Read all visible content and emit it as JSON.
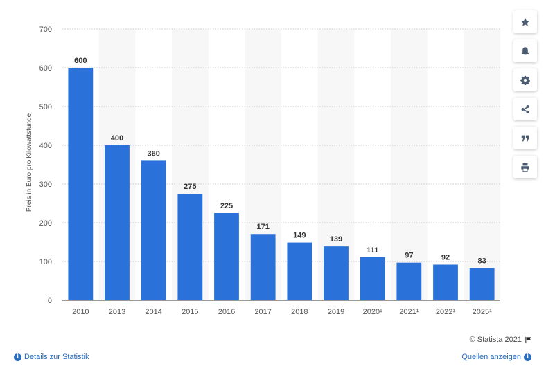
{
  "chart_data": {
    "type": "bar",
    "categories": [
      "2010",
      "2013",
      "2014",
      "2015",
      "2016",
      "2017",
      "2018",
      "2019",
      "2020¹",
      "2021¹",
      "2022¹",
      "2025¹"
    ],
    "values": [
      600,
      400,
      360,
      275,
      225,
      171,
      149,
      139,
      111,
      97,
      92,
      83
    ],
    "ylabel": "Preis in Euro pro Kilowattstunde",
    "ylim": [
      0,
      700
    ],
    "yticks": [
      0,
      100,
      200,
      300,
      400,
      500,
      600,
      700
    ],
    "bar_color": "#2a72d9",
    "grid": true
  },
  "toolbar": {
    "icons": [
      "star-icon",
      "bell-icon",
      "gear-icon",
      "share-icon",
      "quote-icon",
      "print-icon"
    ]
  },
  "footer": {
    "copyright": "© Statista 2021",
    "details_label": "Details zur Statistik",
    "sources_label": "Quellen anzeigen"
  },
  "colors": {
    "accent": "#2a6bbf",
    "bar": "#2a72d9"
  }
}
